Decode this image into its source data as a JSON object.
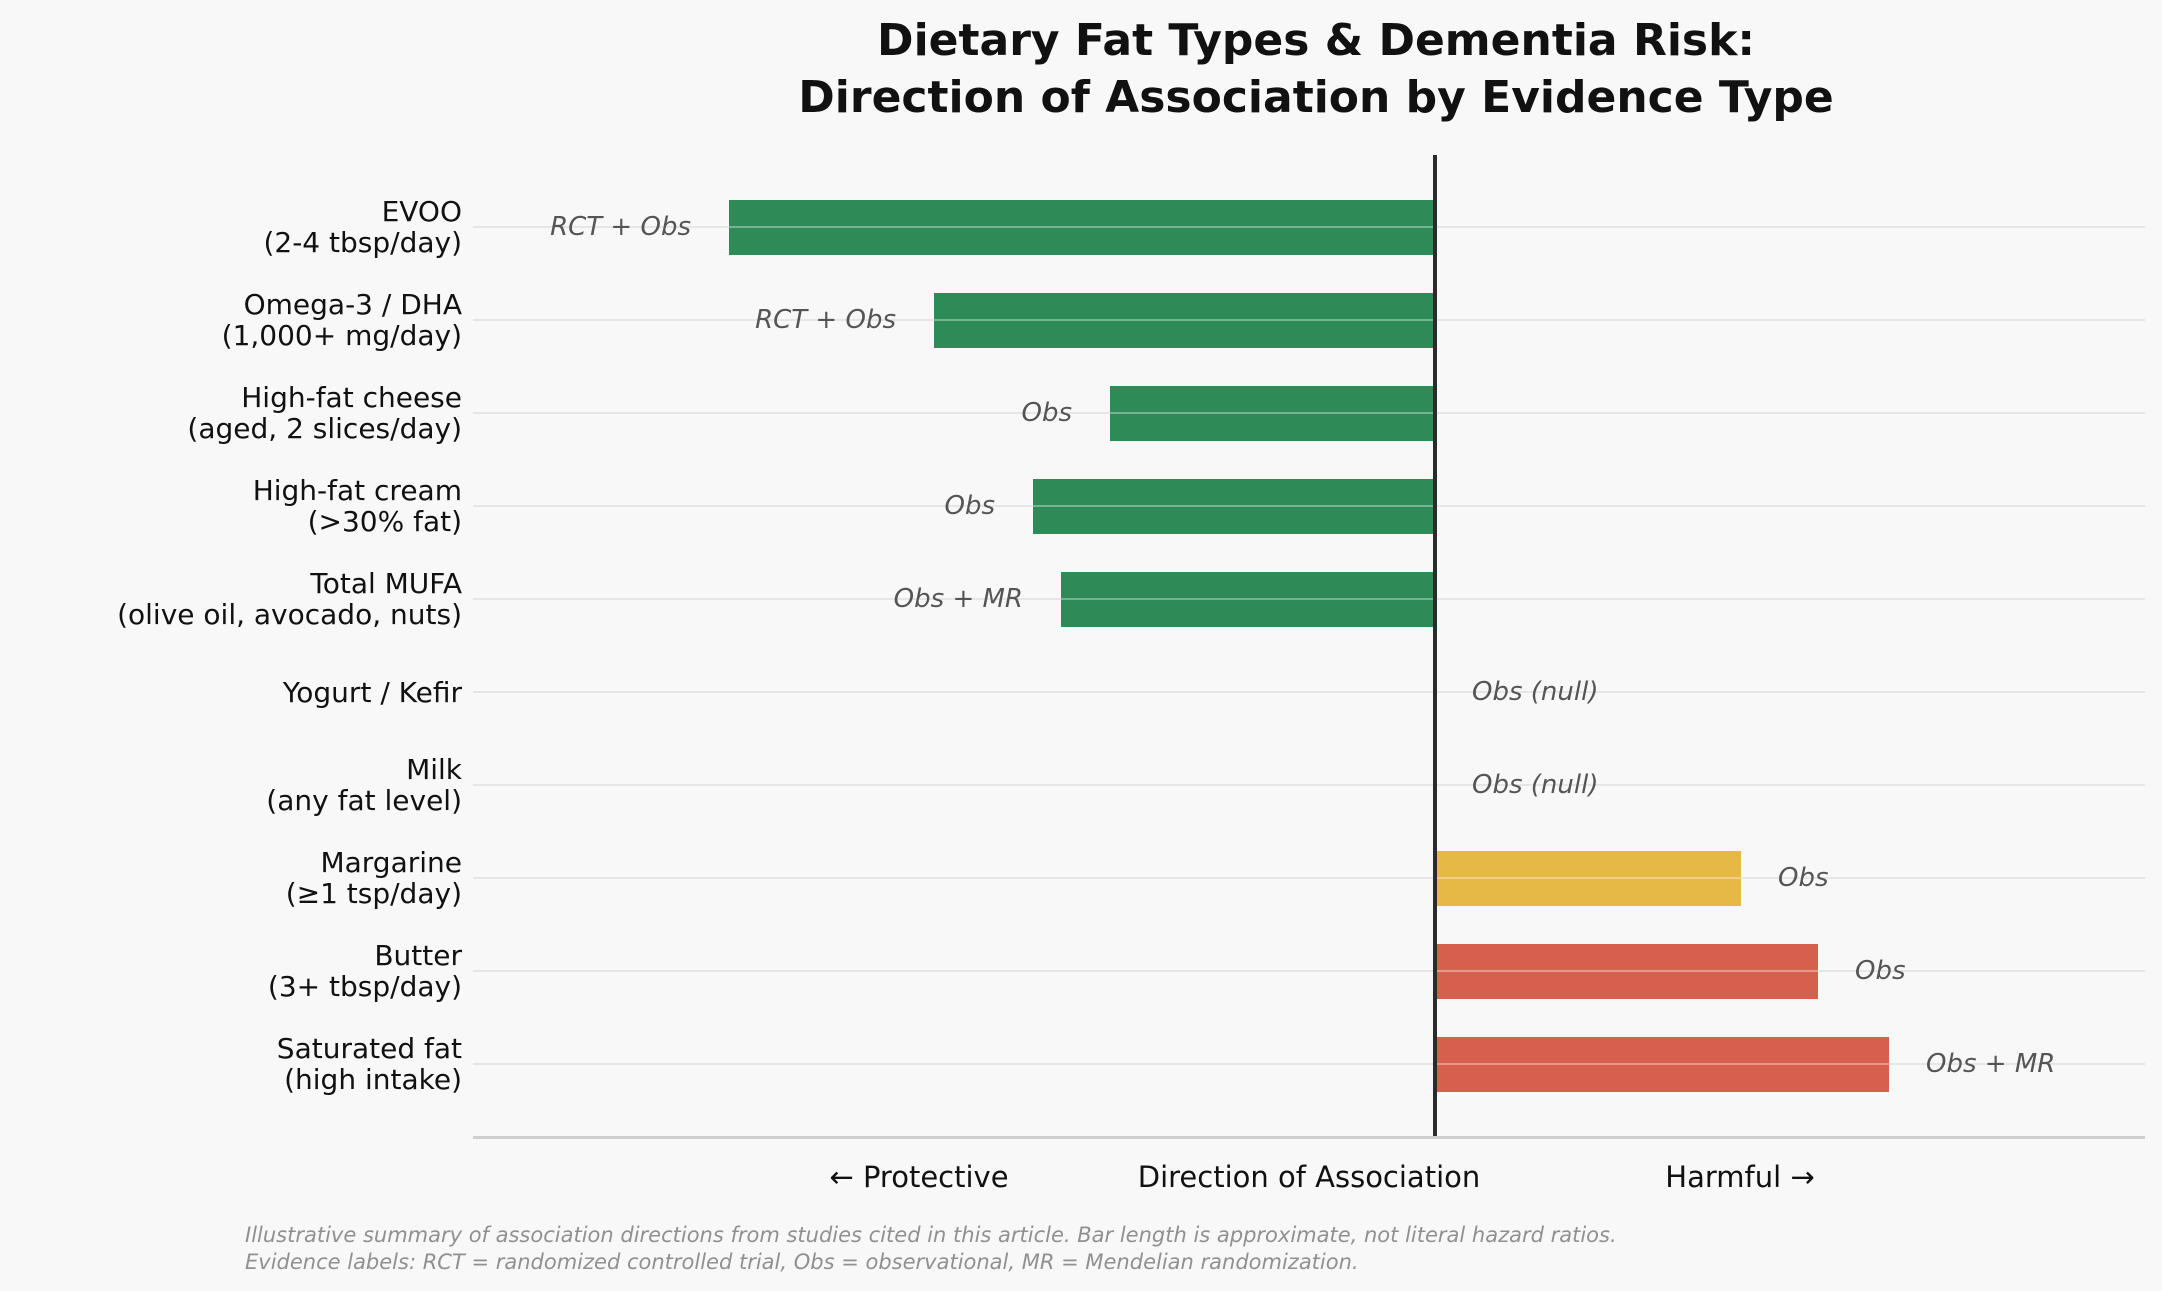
{
  "chart_data": {
    "type": "bar",
    "orientation": "horizontal-diverging",
    "title_lines": [
      "Dietary Fat Types & Dementia Risk:",
      "Direction of Association by Evidence Type"
    ],
    "xlabel": "Direction of Association",
    "left_caption": "← Protective",
    "right_caption": "Harmful →",
    "xlim": [
      -1.2,
      1.2
    ],
    "grid": "horizontal",
    "colors": {
      "protective": "#2e8b57",
      "mixed": "#e6b845",
      "harmful": "#d6604d",
      "zero_axis": "#2b2b2b",
      "background": "#f8f8f8"
    },
    "rows": [
      {
        "label_lines": [
          "EVOO",
          "(2-4 tbsp/day)"
        ],
        "value": -1.0,
        "evidence": "RCT + Obs",
        "color_key": "protective"
      },
      {
        "label_lines": [
          "Omega-3 / DHA",
          "(1,000+ mg/day)"
        ],
        "value": -0.71,
        "evidence": "RCT + Obs",
        "color_key": "protective"
      },
      {
        "label_lines": [
          "High-fat cheese",
          "(aged, 2 slices/day)"
        ],
        "value": -0.46,
        "evidence": "Obs",
        "color_key": "protective"
      },
      {
        "label_lines": [
          "High-fat cream",
          "(>30% fat)"
        ],
        "value": -0.57,
        "evidence": "Obs",
        "color_key": "protective"
      },
      {
        "label_lines": [
          "Total MUFA",
          "(olive oil, avocado, nuts)"
        ],
        "value": -0.53,
        "evidence": "Obs + MR",
        "color_key": "protective"
      },
      {
        "label_lines": [
          "Yogurt / Kefir"
        ],
        "value": 0,
        "evidence": "Obs (null)",
        "color_key": "none"
      },
      {
        "label_lines": [
          "Milk",
          "(any fat level)"
        ],
        "value": 0,
        "evidence": "Obs (null)",
        "color_key": "none"
      },
      {
        "label_lines": [
          "Margarine",
          "(≥1 tsp/day)"
        ],
        "value": 0.43,
        "evidence": "Obs",
        "color_key": "mixed"
      },
      {
        "label_lines": [
          "Butter",
          "(3+ tbsp/day)"
        ],
        "value": 0.54,
        "evidence": "Obs",
        "color_key": "harmful"
      },
      {
        "label_lines": [
          "Saturated fat",
          "(high intake)"
        ],
        "value": 0.64,
        "evidence": "Obs + MR",
        "color_key": "harmful"
      }
    ],
    "footnote_lines": [
      "Illustrative summary of association directions from studies cited in this article. Bar length is approximate, not literal hazard ratios.",
      "Evidence labels: RCT = randomized controlled trial, Obs = observational, MR = Mendelian randomization."
    ]
  }
}
